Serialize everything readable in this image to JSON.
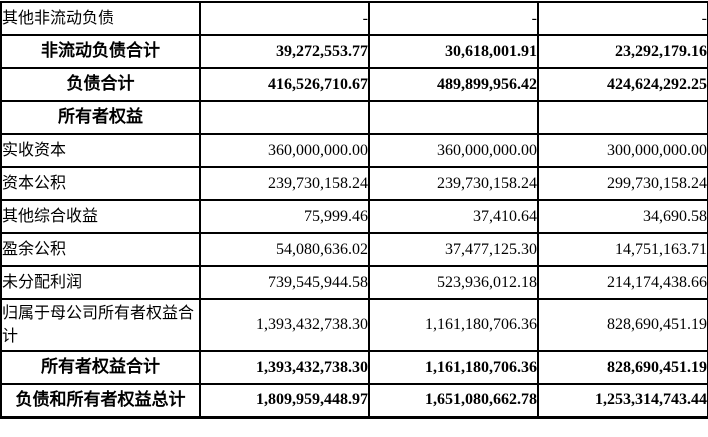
{
  "table": {
    "columns": 4,
    "colors": {
      "border": "#000000",
      "text": "#000000",
      "background": "#ffffff"
    },
    "rows": [
      {
        "label": "其他非流动负债",
        "values": [
          "-",
          "-",
          "-"
        ]
      },
      {
        "label": "非流动负债合计",
        "values": [
          "39,272,553.77",
          "30,618,001.91",
          "23,292,179.16"
        ]
      },
      {
        "label": "负债合计",
        "values": [
          "416,526,710.67",
          "489,899,956.42",
          "424,624,292.25"
        ]
      },
      {
        "label": "所有者权益",
        "values": [
          "",
          "",
          ""
        ]
      },
      {
        "label": "实收资本",
        "values": [
          "360,000,000.00",
          "360,000,000.00",
          "300,000,000.00"
        ]
      },
      {
        "label": "资本公积",
        "values": [
          "239,730,158.24",
          "239,730,158.24",
          "299,730,158.24"
        ]
      },
      {
        "label": "其他综合收益",
        "values": [
          "75,999.46",
          "37,410.64",
          "34,690.58"
        ]
      },
      {
        "label": "盈余公积",
        "values": [
          "54,080,636.02",
          "37,477,125.30",
          "14,751,163.71"
        ]
      },
      {
        "label": "未分配利润",
        "values": [
          "739,545,944.58",
          "523,936,012.18",
          "214,174,438.66"
        ]
      },
      {
        "label": "归属于母公司所有者权益合计",
        "values": [
          "1,393,432,738.30",
          "1,161,180,706.36",
          "828,690,451.19"
        ]
      },
      {
        "label": "所有者权益合计",
        "values": [
          "1,393,432,738.30",
          "1,161,180,706.36",
          "828,690,451.19"
        ]
      },
      {
        "label": "负债和所有者权益总计",
        "values": [
          "1,809,959,448.97",
          "1,651,080,662.78",
          "1,253,314,743.44"
        ]
      }
    ]
  }
}
